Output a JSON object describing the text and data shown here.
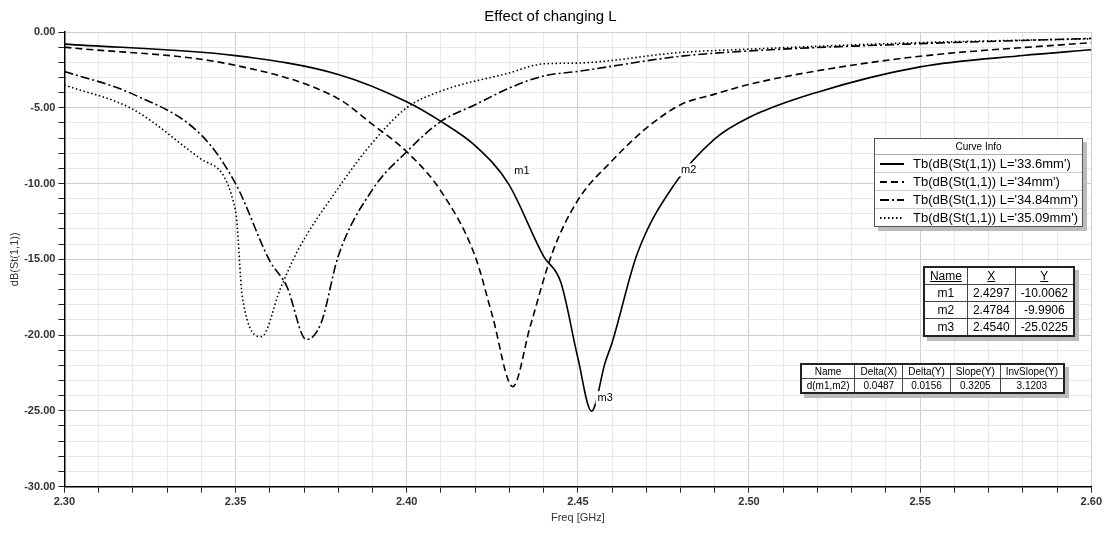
{
  "chart_data": {
    "type": "line",
    "title": "Effect of changing L",
    "xlabel": "Freq [GHz]",
    "ylabel": "dB(St(1,1))",
    "legend_title": "Curve Info",
    "legend": "right",
    "grid": true,
    "marker": "none",
    "xlim": [
      2.3,
      2.6
    ],
    "ylim": [
      -30,
      0
    ],
    "xticks": [
      {
        "value": 2.3,
        "label": "2.30"
      },
      {
        "value": 2.31,
        "label": null
      },
      {
        "value": 2.32,
        "label": null
      },
      {
        "value": 2.33,
        "label": null
      },
      {
        "value": 2.34,
        "label": null
      },
      {
        "value": 2.35,
        "label": "2.35"
      },
      {
        "value": 2.36,
        "label": null
      },
      {
        "value": 2.37,
        "label": null
      },
      {
        "value": 2.38,
        "label": null
      },
      {
        "value": 2.39,
        "label": null
      },
      {
        "value": 2.4,
        "label": "2.40"
      },
      {
        "value": 2.41,
        "label": null
      },
      {
        "value": 2.42,
        "label": null
      },
      {
        "value": 2.43,
        "label": null
      },
      {
        "value": 2.44,
        "label": null
      },
      {
        "value": 2.45,
        "label": "2.45"
      },
      {
        "value": 2.46,
        "label": null
      },
      {
        "value": 2.47,
        "label": null
      },
      {
        "value": 2.48,
        "label": null
      },
      {
        "value": 2.49,
        "label": null
      },
      {
        "value": 2.5,
        "label": "2.50"
      },
      {
        "value": 2.51,
        "label": null
      },
      {
        "value": 2.52,
        "label": null
      },
      {
        "value": 2.53,
        "label": null
      },
      {
        "value": 2.54,
        "label": null
      },
      {
        "value": 2.55,
        "label": "2.55"
      },
      {
        "value": 2.56,
        "label": null
      },
      {
        "value": 2.57,
        "label": null
      },
      {
        "value": 2.58,
        "label": null
      },
      {
        "value": 2.59,
        "label": null
      },
      {
        "value": 2.6,
        "label": "2.60"
      }
    ],
    "yticks": [
      {
        "value": -30,
        "label": "-30.00"
      },
      {
        "value": -29,
        "label": null
      },
      {
        "value": -28,
        "label": null
      },
      {
        "value": -27,
        "label": null
      },
      {
        "value": -26,
        "label": null
      },
      {
        "value": -25,
        "label": "-25.00"
      },
      {
        "value": -24,
        "label": null
      },
      {
        "value": -23,
        "label": null
      },
      {
        "value": -22,
        "label": null
      },
      {
        "value": -21,
        "label": null
      },
      {
        "value": -20,
        "label": "-20.00"
      },
      {
        "value": -19,
        "label": null
      },
      {
        "value": -18,
        "label": null
      },
      {
        "value": -17,
        "label": null
      },
      {
        "value": -16,
        "label": null
      },
      {
        "value": -15,
        "label": "-15.00"
      },
      {
        "value": -14,
        "label": null
      },
      {
        "value": -13,
        "label": null
      },
      {
        "value": -12,
        "label": null
      },
      {
        "value": -11,
        "label": null
      },
      {
        "value": -10,
        "label": "-10.00"
      },
      {
        "value": -9,
        "label": null
      },
      {
        "value": -8,
        "label": null
      },
      {
        "value": -7,
        "label": null
      },
      {
        "value": -6,
        "label": null
      },
      {
        "value": -5,
        "label": "-5.00"
      },
      {
        "value": -4,
        "label": null
      },
      {
        "value": -3,
        "label": null
      },
      {
        "value": -2,
        "label": null
      },
      {
        "value": -1,
        "label": null
      },
      {
        "value": 0,
        "label": "0.00"
      }
    ],
    "series": [
      {
        "name": "Tb(dB(St(1,1)) L='33.6mm')",
        "color": "#000000",
        "line_style": "solid",
        "x": [
          2.3,
          2.35,
          2.38,
          2.4,
          2.41,
          2.42,
          2.4297,
          2.44,
          2.445,
          2.45,
          2.454,
          2.458,
          2.46,
          2.4674,
          2.4784,
          2.49,
          2.5,
          2.52,
          2.55,
          2.58,
          2.6
        ],
        "values": [
          -0.8,
          -1.56,
          -2.8,
          -4.6,
          -5.9,
          -7.5,
          -10.0062,
          -14.8,
          -16.5,
          -21.5,
          -25.0225,
          -21.8,
          -20.5,
          -14.6,
          -9.9906,
          -7.05,
          -5.64,
          -3.97,
          -2.3,
          -1.55,
          -1.17
        ]
      },
      {
        "name": "Tb(dB(St(1,1)) L='34mm')",
        "color": "#000000",
        "line_style": "dashed",
        "x": [
          2.3,
          2.35,
          2.38,
          2.39,
          2.4,
          2.41,
          2.42,
          2.425,
          2.431,
          2.436,
          2.4425,
          2.45,
          2.46,
          2.47,
          2.48,
          2.49,
          2.5,
          2.52,
          2.55,
          2.6
        ],
        "values": [
          -1.0,
          -2.2,
          -4.4,
          -6.1,
          -7.9,
          -10.5,
          -14.8,
          -18.7,
          -23.4,
          -19.5,
          -14.6,
          -11.1,
          -8.5,
          -6.35,
          -4.8,
          -4.1,
          -3.46,
          -2.56,
          -1.6,
          -0.7
        ]
      },
      {
        "name": "Tb(dB(St(1,1)) L='34.84mm')",
        "color": "#000000",
        "line_style": "dashdot",
        "x": [
          2.3,
          2.32,
          2.34,
          2.35,
          2.36,
          2.365,
          2.3707,
          2.375,
          2.38,
          2.39,
          2.4,
          2.41,
          2.42,
          2.43,
          2.44,
          2.45,
          2.48,
          2.5,
          2.55,
          2.6
        ],
        "values": [
          -2.6,
          -4.1,
          -6.8,
          -10.0,
          -15.1,
          -16.8,
          -20.3,
          -19.2,
          -14.8,
          -10.4,
          -7.9,
          -5.9,
          -4.8,
          -3.7,
          -2.9,
          -2.6,
          -1.6,
          -1.25,
          -0.77,
          -0.42
        ]
      },
      {
        "name": "Tb(dB(St(1,1)) L='35.09mm')",
        "color": "#000000",
        "line_style": "dotted",
        "x": [
          2.3,
          2.32,
          2.34,
          2.35,
          2.352,
          2.3576,
          2.363,
          2.368,
          2.38,
          2.39,
          2.4,
          2.41,
          2.43,
          2.44,
          2.45,
          2.48,
          2.5,
          2.55,
          2.6
        ],
        "values": [
          -3.5,
          -5.1,
          -8.4,
          -11.8,
          -17.5,
          -20.1,
          -17.0,
          -14.5,
          -10.3,
          -7.3,
          -5.0,
          -3.9,
          -2.7,
          -2.1,
          -2.05,
          -1.35,
          -1.13,
          -0.7,
          -0.45
        ]
      }
    ],
    "annotations": [
      {
        "text": "m1",
        "x": 2.4297,
        "y": -10.0062
      },
      {
        "text": "m2",
        "x": 2.4784,
        "y": -9.9906
      },
      {
        "text": "m3",
        "x": 2.454,
        "y": -25.0225
      },
      "Name\tX\tY",
      "m1\t2.4297\t-10.0062",
      "m2\t2.4784\t-9.9906",
      "m3\t2.4540\t-25.0225",
      "Name\tDelta(X)\tDelta(Y)\tSlope(Y)\tInvSlope(Y)",
      "d(m1,m2)\t0.0487\t0.0156\t0.3205\t3.1203"
    ]
  }
}
